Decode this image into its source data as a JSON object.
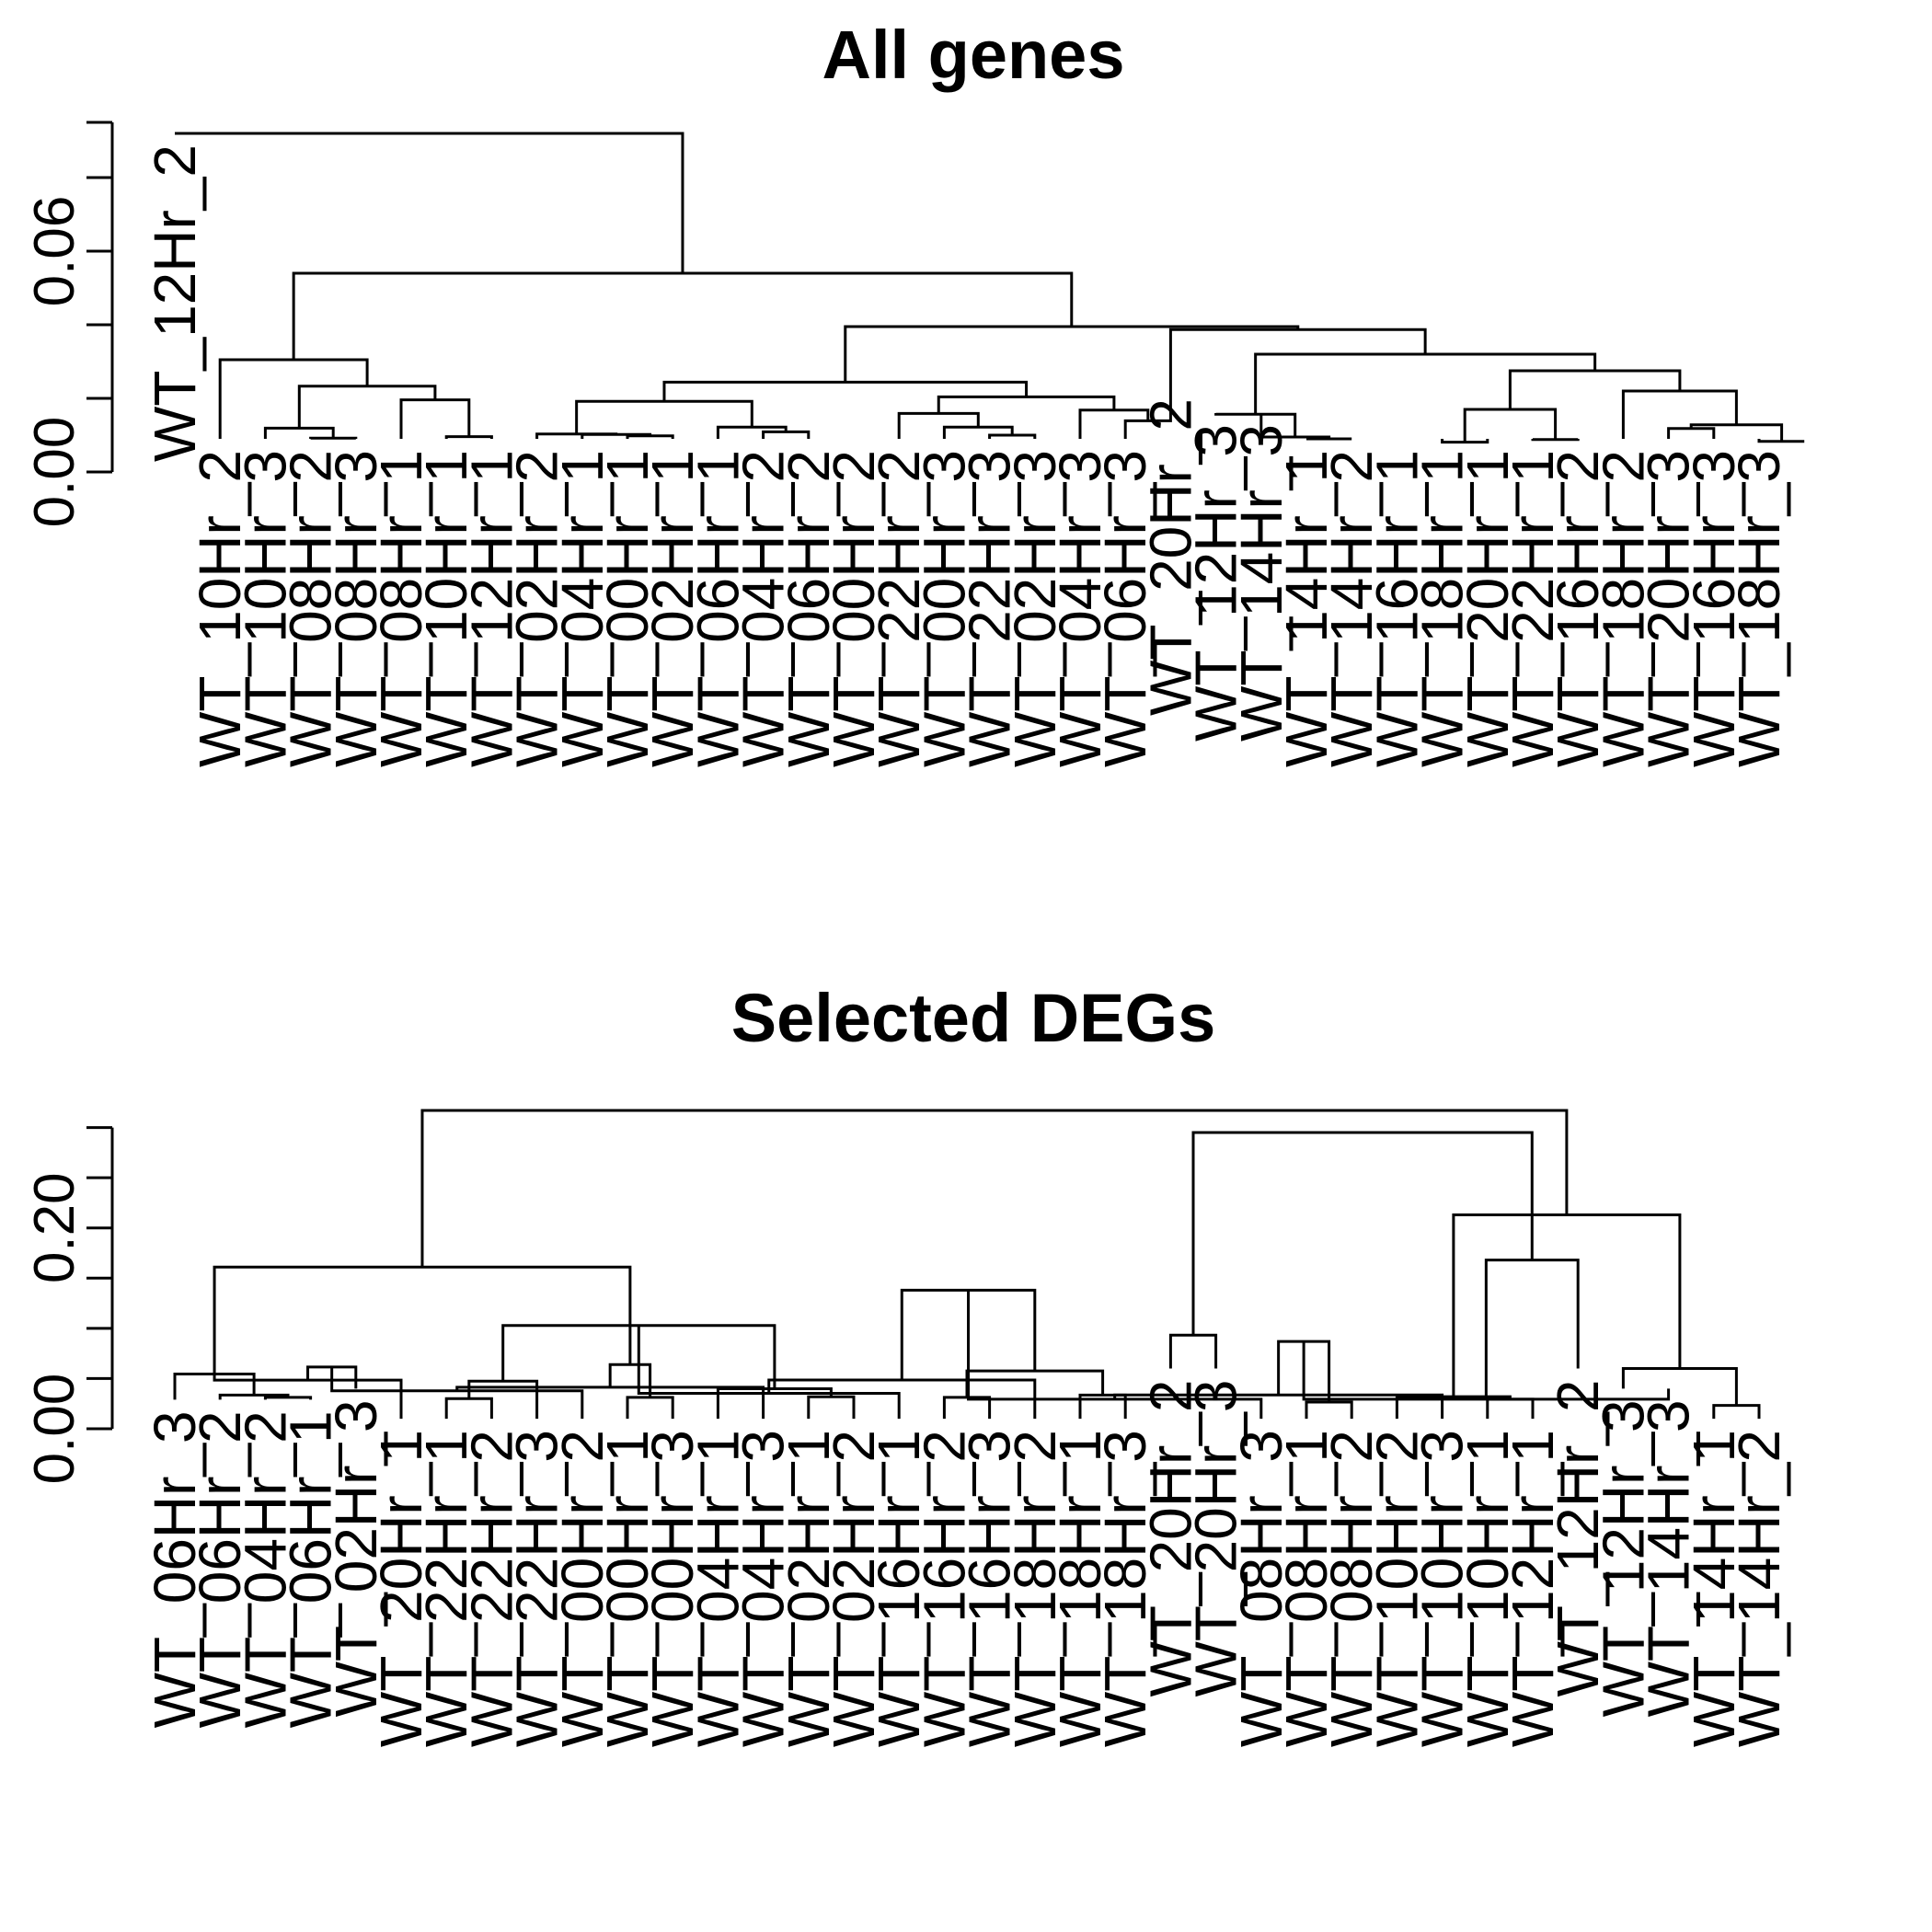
{
  "chart_data": [
    {
      "type": "dendrogram",
      "title": "All genes",
      "ylabel": "",
      "ylim": [
        0,
        0.095
      ],
      "yticks": [
        0,
        0.02,
        0.04,
        0.06,
        0.08,
        0.095
      ],
      "ytick_labels": [
        {
          "value": 0,
          "label": "0.00"
        },
        {
          "value": 0.06,
          "label": "0.06"
        }
      ],
      "leaves": [
        "WT_12Hr_2",
        "WT_10Hr_2",
        "WT_10Hr_3",
        "WT_08Hr_2",
        "WT_08Hr_3",
        "WT_08Hr_1",
        "WT_10Hr_1",
        "WT_12Hr_1",
        "WT_02Hr_2",
        "WT_04Hr_1",
        "WT_00Hr_1",
        "WT_02Hr_1",
        "WT_06Hr_1",
        "WT_04Hr_2",
        "WT_06Hr_2",
        "WT_00Hr_2",
        "WT_22Hr_2",
        "WT_00Hr_3",
        "WT_22Hr_3",
        "WT_02Hr_3",
        "WT_04Hr_3",
        "WT_06Hr_3",
        "WT_20Hr_2",
        "WT_12Hr_3",
        "WT_14Hr_3",
        "WT_14Hr_1",
        "WT_14Hr_2",
        "WT_16Hr_1",
        "WT_18Hr_1",
        "WT_20Hr_1",
        "WT_22Hr_1",
        "WT_16Hr_2",
        "WT_18Hr_2",
        "WT_20Hr_3",
        "WT_16Hr_3",
        "WT_18Hr_3"
      ],
      "leaf_heights": [
        0.092,
        0.009,
        0.009,
        0.009,
        0.009,
        0.009,
        0.009,
        0.009,
        0.009,
        0.009,
        0.009,
        0.009,
        0.009,
        0.009,
        0.009,
        0.009,
        0.009,
        0.009,
        0.009,
        0.009,
        0.009,
        0.009,
        0.023,
        0.016,
        0.016,
        0.009,
        0.009,
        0.009,
        0.009,
        0.009,
        0.009,
        0.009,
        0.009,
        0.009,
        0.009,
        0.009
      ],
      "merges": [
        [
          -4,
          -5,
          0.0092
        ],
        [
          -3,
          1,
          0.0119
        ],
        [
          -7,
          -8,
          0.0096
        ],
        [
          -6,
          3,
          0.0196
        ],
        [
          2,
          4,
          0.0233
        ],
        [
          -2,
          5,
          0.0305
        ],
        [
          -11,
          -12,
          0.0098
        ],
        [
          -10,
          7,
          0.0102
        ],
        [
          -9,
          8,
          0.0103
        ],
        [
          -14,
          -15,
          0.0109
        ],
        [
          -13,
          10,
          0.0122
        ],
        [
          9,
          11,
          0.0192
        ],
        [
          -19,
          -20,
          0.01
        ],
        [
          -18,
          13,
          0.0122
        ],
        [
          -17,
          14,
          0.0159
        ],
        [
          -22,
          -23,
          0.0139
        ],
        [
          -21,
          16,
          0.0168
        ],
        [
          15,
          17,
          0.0204
        ],
        [
          12,
          18,
          0.0244
        ],
        [
          -26,
          -27,
          0.009
        ],
        [
          -25,
          20,
          0.0095
        ],
        [
          -24,
          21,
          0.0157
        ],
        [
          -29,
          -30,
          0.0081
        ],
        [
          -31,
          -32,
          0.0088
        ],
        [
          23,
          24,
          0.017
        ],
        [
          -34,
          -35,
          0.0118
        ],
        [
          -36,
          -37,
          0.0083
        ],
        [
          26,
          27,
          0.0128
        ],
        [
          -33,
          28,
          0.022
        ],
        [
          25,
          29,
          0.0275
        ],
        [
          22,
          30,
          0.032
        ],
        [
          -23,
          31,
          0.0387
        ],
        [
          19,
          32,
          0.0395
        ],
        [
          6,
          33,
          0.054
        ],
        [
          -1,
          34,
          0.092
        ]
      ]
    },
    {
      "type": "dendrogram",
      "title": "Selected DEGs",
      "ylabel": "",
      "ylim": [
        0,
        0.35
      ],
      "yticks": [
        0,
        0.05,
        0.1,
        0.15,
        0.2,
        0.25,
        0.3
      ],
      "ytick_labels": [
        {
          "value": 0,
          "label": "0.00"
        },
        {
          "value": 0.2,
          "label": "0.20"
        }
      ],
      "leaves": [
        "WT_06Hr_3",
        "WT_06Hr_2",
        "WT_04Hr_2",
        "WT_06Hr_1",
        "WT_02Hr_3",
        "WT_20Hr_1",
        "WT_22Hr_1",
        "WT_22Hr_2",
        "WT_22Hr_3",
        "WT_00Hr_2",
        "WT_00Hr_1",
        "WT_00Hr_3",
        "WT_04Hr_1",
        "WT_04Hr_3",
        "WT_02Hr_1",
        "WT_02Hr_2",
        "WT_16Hr_1",
        "WT_16Hr_2",
        "WT_16Hr_3",
        "WT_18Hr_2",
        "WT_18Hr_1",
        "WT_18Hr_3",
        "WT_20Hr_2",
        "WT_20Hr_3",
        "WT_08Hr_3",
        "WT_08Hr_1",
        "WT_08Hr_2",
        "WT_10Hr_2",
        "WT_10Hr_3",
        "WT_10Hr_1",
        "WT_12Hr_1",
        "WT_12Hr_2",
        "WT_12Hr_3",
        "WT_14Hr_3",
        "WT_14Hr_1",
        "WT_14Hr_2"
      ],
      "leaf_heights": [
        0.029,
        0.029,
        0.029,
        0.029,
        0.04,
        0.01,
        0.01,
        0.01,
        0.01,
        0.01,
        0.01,
        0.01,
        0.01,
        0.01,
        0.01,
        0.01,
        0.01,
        0.01,
        0.01,
        0.01,
        0.01,
        0.01,
        0.06,
        0.06,
        0.01,
        0.01,
        0.01,
        0.01,
        0.01,
        0.01,
        0.01,
        0.06,
        0.04,
        0.04,
        0.01,
        0.01
      ],
      "merges": [
        [
          -3,
          -4,
          0.0313
        ],
        [
          -2,
          1,
          0.0336
        ],
        [
          -1,
          2,
          0.0545
        ],
        [
          -7,
          -8,
          0.03
        ],
        [
          -6,
          3,
          0.0485
        ],
        [
          4,
          -9,
          0.0474
        ],
        [
          -5,
          5,
          0.0615
        ],
        [
          -11,
          -12,
          0.0313
        ],
        [
          -10,
          7,
          0.0378
        ],
        [
          -15,
          -16,
          0.0318
        ],
        [
          -14,
          9,
          0.0413
        ],
        [
          -13,
          10,
          0.0398
        ],
        [
          8,
          11,
          0.0639
        ],
        [
          6,
          12,
          0.1028
        ],
        [
          3,
          13,
          0.161
        ],
        [
          -18,
          -19,
          0.0313
        ],
        [
          -17,
          14,
          0.0353
        ],
        [
          -21,
          -22,
          0.0335
        ],
        [
          -20,
          17,
          0.0486
        ],
        [
          16,
          18,
          0.0576
        ],
        [
          -23,
          -24,
          0.0932
        ],
        [
          19,
          20,
          0.138
        ],
        [
          -26,
          -27,
          0.0266
        ],
        [
          -25,
          22,
          0.0294
        ],
        [
          -30,
          -31,
          0.0294
        ],
        [
          -29,
          24,
          0.0337
        ],
        [
          -28,
          25,
          0.032
        ],
        [
          23,
          26,
          0.0869
        ],
        [
          -35,
          -36,
          0.0233
        ],
        [
          -34,
          28,
          0.0294
        ],
        [
          -33,
          29,
          0.06
        ],
        [
          -32,
          30,
          0.168
        ],
        [
          27,
          31,
          0.213
        ],
        [
          21,
          32,
          0.295
        ],
        [
          15,
          33,
          0.317
        ]
      ]
    }
  ]
}
